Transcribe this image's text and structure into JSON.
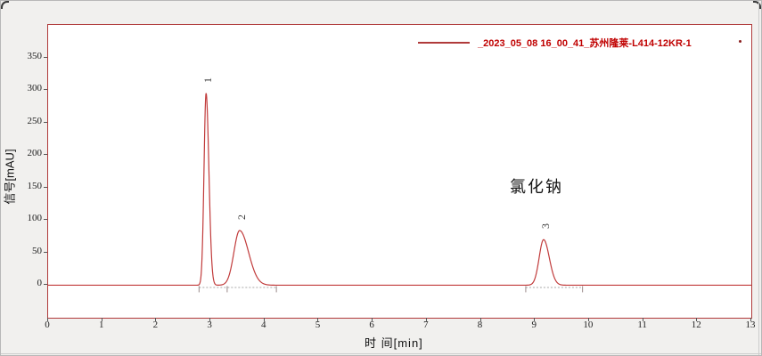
{
  "window": {
    "background_color": "#f1f0ee"
  },
  "legend": {
    "sample_name": "_2023_05_08 16_00_41_苏州隆莱-L414-12KR-1",
    "trailing_dot": ".",
    "text_color": "#c00000",
    "line_color": "#b03a3a"
  },
  "annotation": {
    "text": "氯化钠"
  },
  "chart_data": {
    "type": "line",
    "title": "",
    "xlabel": "时 间[min]",
    "ylabel": "信号[mAU]",
    "xlim": [
      0,
      13
    ],
    "ylim": [
      -50,
      400
    ],
    "x_ticks": [
      0,
      1,
      2,
      3,
      4,
      5,
      6,
      7,
      8,
      9,
      10,
      11,
      12,
      13
    ],
    "y_ticks": [
      0,
      50,
      100,
      150,
      200,
      250,
      300,
      350
    ],
    "grid": "off",
    "legend_position": "top-right",
    "series_color": "#c13b3b",
    "baseline_mAU": 0,
    "peaks": [
      {
        "label": "1",
        "rt_min": 2.92,
        "height_mAU": 295,
        "sigma_left": 0.038,
        "sigma_right": 0.052
      },
      {
        "label": "2",
        "rt_min": 3.54,
        "height_mAU": 84,
        "sigma_left": 0.105,
        "sigma_right": 0.165
      },
      {
        "label": "3",
        "rt_min": 9.16,
        "height_mAU": 70,
        "sigma_left": 0.082,
        "sigma_right": 0.105
      }
    ],
    "integration": [
      {
        "start_min": 2.79,
        "end_min": 4.22,
        "tick_marks_min": [
          2.79,
          3.31,
          4.22
        ]
      },
      {
        "start_min": 8.83,
        "end_min": 9.88,
        "tick_marks_min": [
          8.83,
          9.88
        ]
      }
    ]
  }
}
